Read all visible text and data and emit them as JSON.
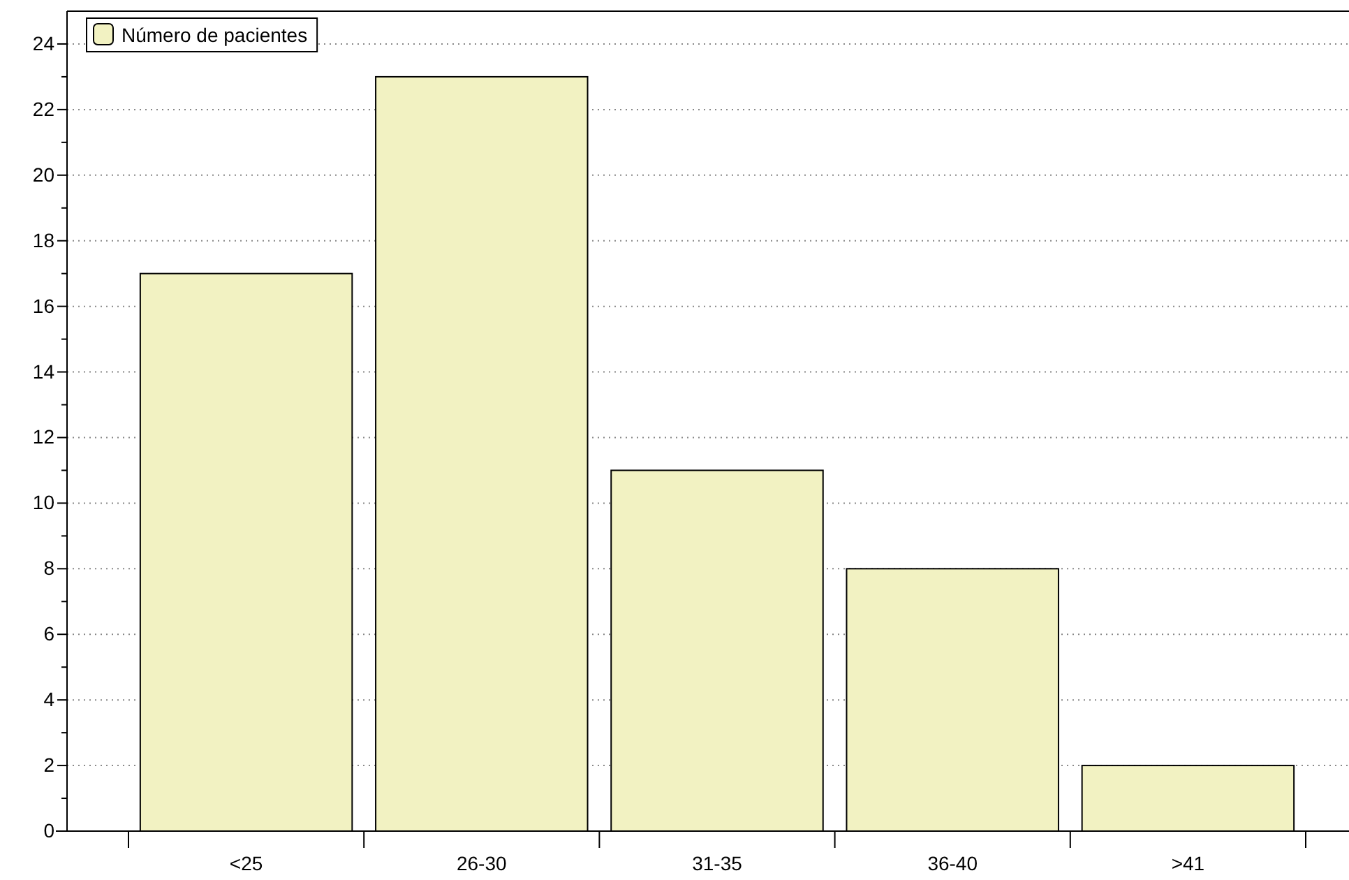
{
  "chart_data": {
    "type": "bar",
    "categories": [
      "<25",
      "26-30",
      "31-35",
      "36-40",
      ">41"
    ],
    "series": [
      {
        "name": "Número de pacientes",
        "color": "#f2f2c2",
        "values": [
          17,
          23,
          11,
          8,
          2
        ]
      }
    ],
    "ylim": [
      0,
      25
    ],
    "yticks": [
      0,
      {
        "value": 1,
        "label": null
      },
      2,
      {
        "value": 3,
        "label": null
      },
      4,
      {
        "value": 5,
        "label": null
      },
      6,
      {
        "value": 7,
        "label": null
      },
      8,
      {
        "value": 9,
        "label": null
      },
      10,
      {
        "value": 11,
        "label": null
      },
      12,
      {
        "value": 13,
        "label": null
      },
      14,
      {
        "value": 15,
        "label": null
      },
      16,
      {
        "value": 17,
        "label": null
      },
      18,
      {
        "value": 19,
        "label": null
      },
      20,
      {
        "value": 21,
        "label": null
      },
      22,
      {
        "value": 23,
        "label": null
      },
      24
    ],
    "grid": "y",
    "legend": "top left"
  }
}
